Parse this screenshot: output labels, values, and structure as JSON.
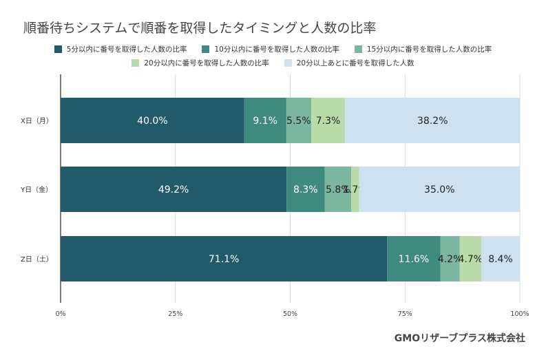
{
  "chart_data": {
    "type": "bar",
    "orientation": "horizontal",
    "stacked": "percent",
    "title": "順番待ちシステムで順番を取得したタイミングと人数の比率",
    "categories": [
      "X日（月）",
      "Y日（金）",
      "Z日（土）"
    ],
    "series": [
      {
        "name": "5分以内に番号を取得した人数の比率",
        "color": "#235a6a",
        "values": [
          40.0,
          49.2,
          71.1
        ]
      },
      {
        "name": "10分以内に番号を取得した人数の比率",
        "color": "#3e8a7e",
        "values": [
          9.1,
          8.3,
          11.6
        ]
      },
      {
        "name": "15分以内に番号を取得した人数の比率",
        "color": "#7cb5a0",
        "values": [
          5.5,
          5.8,
          4.2
        ]
      },
      {
        "name": "20分以内に番号を取得した人数の比率",
        "color": "#b9dba7",
        "values": [
          7.3,
          1.7,
          4.7
        ]
      },
      {
        "name": "20分以上あとに番号を取得した人数",
        "color": "#cde1f0",
        "values": [
          38.2,
          35.0,
          8.4
        ]
      }
    ],
    "data_labels": [
      [
        "40.0%",
        "9.1%",
        "5.5%",
        "7.3%",
        "38.2%"
      ],
      [
        "49.2%",
        "8.3%",
        "5.8%",
        "1.7%",
        "35.0%"
      ],
      [
        "71.1%",
        "11.6%",
        "4.2%",
        "4.7%",
        "8.4%"
      ]
    ],
    "xlim": [
      0,
      100
    ],
    "xticks": [
      "0%",
      "25%",
      "50%",
      "75%",
      "100%"
    ],
    "grid": true,
    "legend_position": "top"
  },
  "footer": {
    "brand": "GMOリザーブプラス株式会社"
  }
}
